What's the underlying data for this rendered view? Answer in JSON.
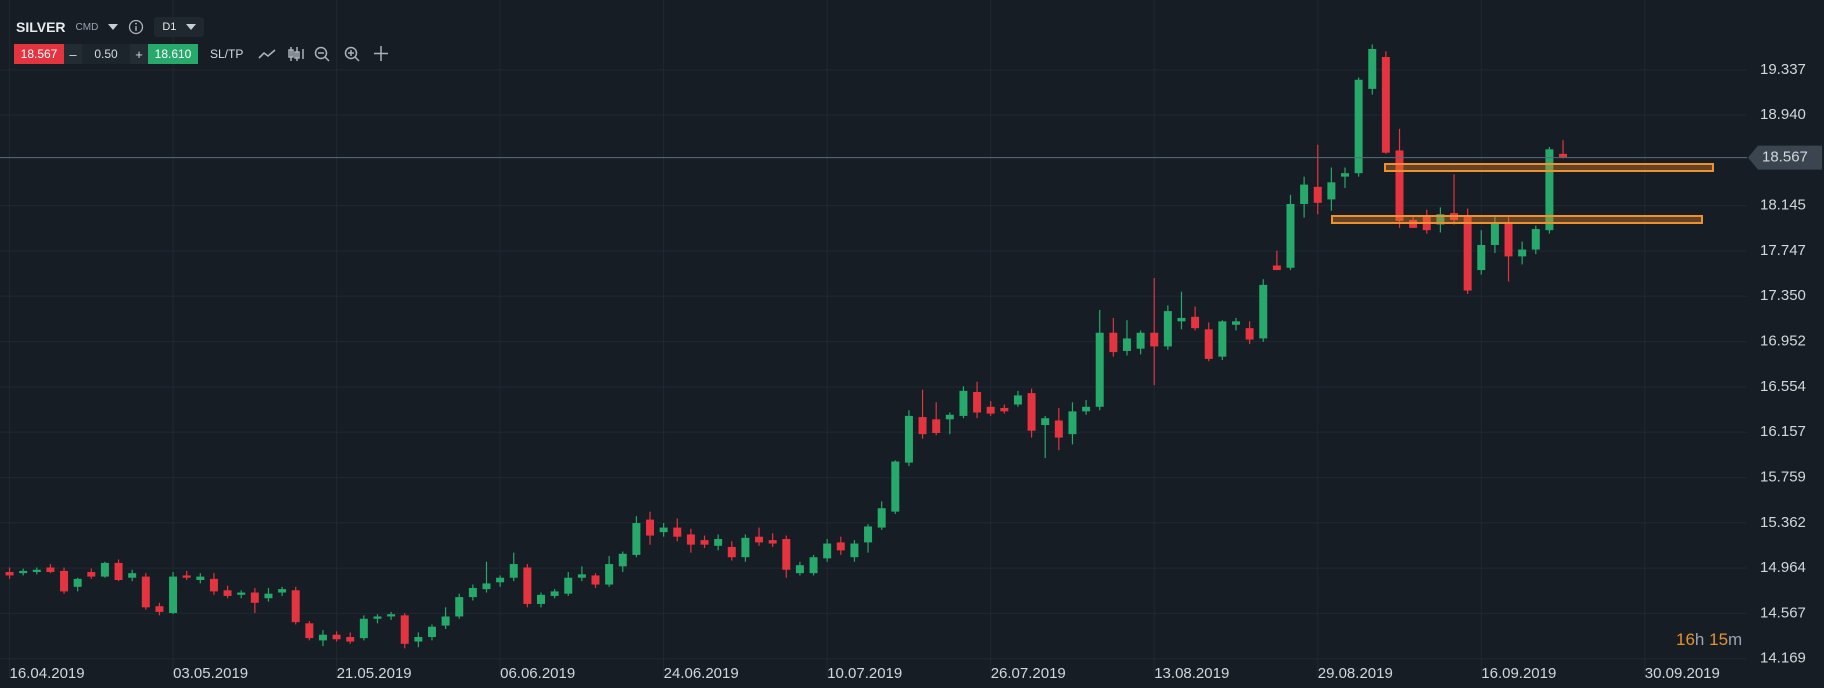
{
  "header": {
    "symbol": "SILVER",
    "market": "CMD",
    "timeframe": "D1",
    "sell": "18.567",
    "lot_minus": "–",
    "lot": "0.50",
    "lot_plus": "+",
    "buy": "18.610",
    "sltp": "SL/TP"
  },
  "countdown": {
    "hours": "16",
    "hours_unit": "h",
    "minutes": "15",
    "minutes_unit": "m"
  },
  "chart_data": {
    "type": "candlestick",
    "up_color": "#26a96b",
    "down_color": "#e3343f",
    "grid": true,
    "current_price": 18.567,
    "xlim": [
      -0.7,
      127.5
    ],
    "ylim": [
      14.0,
      19.95
    ],
    "xticks": [
      {
        "value": 0,
        "label": "16.04.2019"
      },
      {
        "value": 12,
        "label": "03.05.2019"
      },
      {
        "value": 24,
        "label": "21.05.2019"
      },
      {
        "value": 36,
        "label": "06.06.2019"
      },
      {
        "value": 48,
        "label": "24.06.2019"
      },
      {
        "value": 60,
        "label": "10.07.2019"
      },
      {
        "value": 72,
        "label": "26.07.2019"
      },
      {
        "value": 84,
        "label": "13.08.2019"
      },
      {
        "value": 96,
        "label": "29.08.2019"
      },
      {
        "value": 108,
        "label": "16.09.2019"
      },
      {
        "value": 120,
        "label": "30.09.2019"
      }
    ],
    "yticks": [
      19.337,
      {
        "value": 18.94,
        "label": "18.940"
      },
      18.145,
      17.747,
      {
        "value": 17.35,
        "label": "17.350"
      },
      16.952,
      16.554,
      16.157,
      15.759,
      15.362,
      14.964,
      14.567,
      14.169
    ],
    "ohlc": [
      [
        14.93,
        14.97,
        14.87,
        14.9
      ],
      [
        14.92,
        14.96,
        14.9,
        14.94
      ],
      [
        14.93,
        14.97,
        14.91,
        14.95
      ],
      [
        14.97,
        15.0,
        14.92,
        14.93
      ],
      [
        14.94,
        14.97,
        14.74,
        14.76
      ],
      [
        14.8,
        14.88,
        14.76,
        14.87
      ],
      [
        14.93,
        14.96,
        14.87,
        14.89
      ],
      [
        14.89,
        15.02,
        14.88,
        15.01
      ],
      [
        15.01,
        15.04,
        14.85,
        14.86
      ],
      [
        14.88,
        14.95,
        14.85,
        14.92
      ],
      [
        14.89,
        14.92,
        14.6,
        14.62
      ],
      [
        14.63,
        14.66,
        14.55,
        14.58
      ],
      [
        14.57,
        14.93,
        14.56,
        14.89
      ],
      [
        14.9,
        14.94,
        14.86,
        14.88
      ],
      [
        14.86,
        14.92,
        14.83,
        14.89
      ],
      [
        14.87,
        14.92,
        14.73,
        14.76
      ],
      [
        14.77,
        14.81,
        14.7,
        14.72
      ],
      [
        14.73,
        14.77,
        14.7,
        14.75
      ],
      [
        14.75,
        14.79,
        14.57,
        14.66
      ],
      [
        14.7,
        14.79,
        14.67,
        14.74
      ],
      [
        14.75,
        14.8,
        14.72,
        14.78
      ],
      [
        14.77,
        14.8,
        14.47,
        14.49
      ],
      [
        14.48,
        14.5,
        14.33,
        14.35
      ],
      [
        14.33,
        14.42,
        14.28,
        14.38
      ],
      [
        14.38,
        14.41,
        14.32,
        14.34
      ],
      [
        14.36,
        14.4,
        14.3,
        14.32
      ],
      [
        14.35,
        14.55,
        14.33,
        14.52
      ],
      [
        14.52,
        14.56,
        14.48,
        14.54
      ],
      [
        14.54,
        14.58,
        14.51,
        14.56
      ],
      [
        14.55,
        14.57,
        14.26,
        14.3
      ],
      [
        14.32,
        14.4,
        14.27,
        14.36
      ],
      [
        14.36,
        14.47,
        14.33,
        14.45
      ],
      [
        14.46,
        14.62,
        14.43,
        14.54
      ],
      [
        14.54,
        14.74,
        14.52,
        14.71
      ],
      [
        14.71,
        14.82,
        14.68,
        14.79
      ],
      [
        14.78,
        15.02,
        14.75,
        14.83
      ],
      [
        14.84,
        14.9,
        14.8,
        14.88
      ],
      [
        14.88,
        15.1,
        14.85,
        15.0
      ],
      [
        14.97,
        15.0,
        14.62,
        14.65
      ],
      [
        14.65,
        14.75,
        14.62,
        14.73
      ],
      [
        14.72,
        14.78,
        14.7,
        14.76
      ],
      [
        14.74,
        14.93,
        14.72,
        14.88
      ],
      [
        14.88,
        14.98,
        14.85,
        14.91
      ],
      [
        14.9,
        14.92,
        14.79,
        14.82
      ],
      [
        14.82,
        15.07,
        14.8,
        15.0
      ],
      [
        14.98,
        15.11,
        14.93,
        15.09
      ],
      [
        15.08,
        15.42,
        15.06,
        15.36
      ],
      [
        15.39,
        15.46,
        15.17,
        15.25
      ],
      [
        15.28,
        15.36,
        15.24,
        15.32
      ],
      [
        15.32,
        15.4,
        15.2,
        15.24
      ],
      [
        15.26,
        15.31,
        15.1,
        15.17
      ],
      [
        15.21,
        15.25,
        15.14,
        15.17
      ],
      [
        15.16,
        15.26,
        15.12,
        15.22
      ],
      [
        15.15,
        15.2,
        15.03,
        15.06
      ],
      [
        15.06,
        15.26,
        15.02,
        15.23
      ],
      [
        15.24,
        15.32,
        15.16,
        15.19
      ],
      [
        15.21,
        15.27,
        15.15,
        15.18
      ],
      [
        15.22,
        15.25,
        14.88,
        14.95
      ],
      [
        14.92,
        15.02,
        14.9,
        14.99
      ],
      [
        14.92,
        15.08,
        14.9,
        15.06
      ],
      [
        15.05,
        15.22,
        15.02,
        15.18
      ],
      [
        15.19,
        15.24,
        15.08,
        15.12
      ],
      [
        15.06,
        15.21,
        15.02,
        15.18
      ],
      [
        15.19,
        15.35,
        15.1,
        15.33
      ],
      [
        15.32,
        15.55,
        15.3,
        15.49
      ],
      [
        15.46,
        15.91,
        15.44,
        15.9
      ],
      [
        15.89,
        16.35,
        15.86,
        16.3
      ],
      [
        16.29,
        16.53,
        16.1,
        16.14
      ],
      [
        16.27,
        16.42,
        16.13,
        16.15
      ],
      [
        16.27,
        16.33,
        16.14,
        16.31
      ],
      [
        16.3,
        16.56,
        16.28,
        16.52
      ],
      [
        16.51,
        16.6,
        16.28,
        16.33
      ],
      [
        16.38,
        16.43,
        16.3,
        16.32
      ],
      [
        16.37,
        16.4,
        16.32,
        16.34
      ],
      [
        16.4,
        16.52,
        16.38,
        16.48
      ],
      [
        16.5,
        16.54,
        16.11,
        16.17
      ],
      [
        16.22,
        16.3,
        15.93,
        16.28
      ],
      [
        16.26,
        16.37,
        16.0,
        16.11
      ],
      [
        16.14,
        16.42,
        16.05,
        16.34
      ],
      [
        16.34,
        16.44,
        16.31,
        16.38
      ],
      [
        16.38,
        17.23,
        16.35,
        17.03
      ],
      [
        17.03,
        17.16,
        16.82,
        16.86
      ],
      [
        16.87,
        17.14,
        16.83,
        16.98
      ],
      [
        16.89,
        17.05,
        16.84,
        17.03
      ],
      [
        17.03,
        17.51,
        16.57,
        16.91
      ],
      [
        16.91,
        17.27,
        16.88,
        17.22
      ],
      [
        17.13,
        17.39,
        17.06,
        17.16
      ],
      [
        17.17,
        17.26,
        17.05,
        17.07
      ],
      [
        17.06,
        17.12,
        16.78,
        16.8
      ],
      [
        16.82,
        17.14,
        16.79,
        17.13
      ],
      [
        17.1,
        17.16,
        17.05,
        17.13
      ],
      [
        17.07,
        17.13,
        16.93,
        16.97
      ],
      [
        16.98,
        17.5,
        16.95,
        17.45
      ],
      [
        17.62,
        17.75,
        17.58,
        17.58
      ],
      [
        17.6,
        18.24,
        17.58,
        18.16
      ],
      [
        18.16,
        18.4,
        18.04,
        18.33
      ],
      [
        18.31,
        18.68,
        18.07,
        18.17
      ],
      [
        18.2,
        18.48,
        18.1,
        18.35
      ],
      [
        18.4,
        18.48,
        18.3,
        18.43
      ],
      [
        18.43,
        19.27,
        18.4,
        19.25
      ],
      [
        19.17,
        19.56,
        19.12,
        19.52
      ],
      [
        19.45,
        19.5,
        18.6,
        18.61
      ],
      [
        18.63,
        18.82,
        17.95,
        18.01
      ],
      [
        18.02,
        18.05,
        17.95,
        17.95
      ],
      [
        18.05,
        18.11,
        17.9,
        17.93
      ],
      [
        17.98,
        18.13,
        17.91,
        18.07
      ],
      [
        18.08,
        18.42,
        17.98,
        18.02
      ],
      [
        18.06,
        18.12,
        17.37,
        17.4
      ],
      [
        17.58,
        17.93,
        17.54,
        17.8
      ],
      [
        17.8,
        18.05,
        17.73,
        18.0
      ],
      [
        18.0,
        18.05,
        17.48,
        17.7
      ],
      [
        17.7,
        17.83,
        17.63,
        17.76
      ],
      [
        17.76,
        17.97,
        17.72,
        17.94
      ],
      [
        17.93,
        18.66,
        17.9,
        18.64
      ],
      [
        18.6,
        18.72,
        18.56,
        18.57
      ]
    ]
  }
}
